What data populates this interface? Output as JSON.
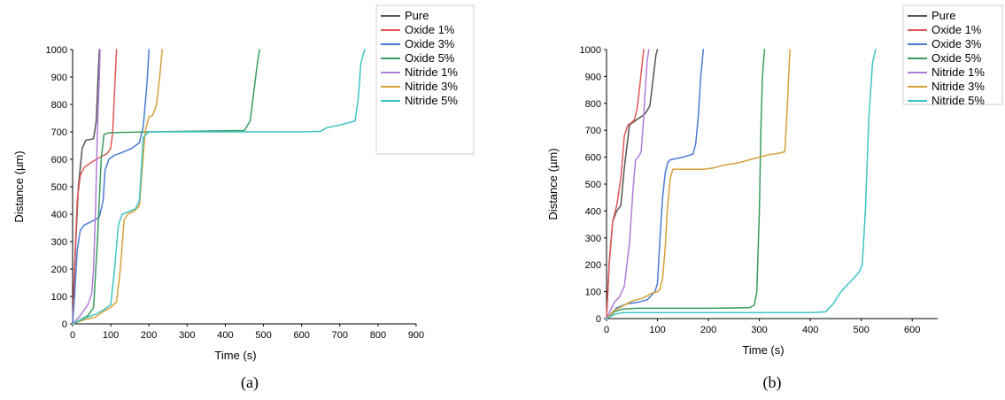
{
  "chart_data": [
    {
      "type": "line",
      "caption": "(a)",
      "xlabel": "Time (s)",
      "ylabel": "Distance (µm)",
      "xlim": [
        0,
        900
      ],
      "ylim": [
        0,
        1000
      ],
      "xticks": [
        0,
        100,
        200,
        300,
        400,
        500,
        600,
        700,
        800,
        900
      ],
      "yticks": [
        0,
        100,
        200,
        300,
        400,
        500,
        600,
        700,
        800,
        900,
        1000
      ],
      "legend_position": "top-right",
      "series": [
        {
          "name": "Pure",
          "color": "#555555",
          "x": [
            0,
            5,
            15,
            25,
            35,
            45,
            55,
            62,
            66,
            70
          ],
          "y": [
            0,
            200,
            500,
            640,
            670,
            672,
            675,
            740,
            880,
            1000
          ]
        },
        {
          "name": "Oxide 1%",
          "color": "#e05757",
          "x": [
            0,
            5,
            12,
            20,
            30,
            50,
            75,
            90,
            100,
            105,
            110,
            115
          ],
          "y": [
            0,
            200,
            450,
            540,
            570,
            590,
            610,
            620,
            640,
            700,
            850,
            1000
          ]
        },
        {
          "name": "Oxide 3%",
          "color": "#4a7bd3",
          "x": [
            0,
            5,
            12,
            20,
            30,
            45,
            60,
            70,
            80,
            85,
            95,
            110,
            130,
            155,
            175,
            185,
            195,
            200
          ],
          "y": [
            0,
            100,
            270,
            340,
            360,
            370,
            380,
            390,
            450,
            560,
            600,
            615,
            625,
            640,
            660,
            720,
            880,
            1000
          ]
        },
        {
          "name": "Oxide 5%",
          "color": "#3a9c5e",
          "x": [
            0,
            20,
            40,
            55,
            65,
            75,
            82,
            90,
            100,
            200,
            300,
            450,
            465,
            475,
            485,
            490
          ],
          "y": [
            0,
            15,
            30,
            60,
            300,
            600,
            690,
            695,
            697,
            700,
            702,
            705,
            740,
            850,
            960,
            1000
          ]
        },
        {
          "name": "Nitride 1%",
          "color": "#b07cd9",
          "x": [
            0,
            20,
            40,
            50,
            55,
            60,
            65,
            70,
            72
          ],
          "y": [
            0,
            30,
            70,
            110,
            200,
            420,
            700,
            900,
            1000
          ]
        },
        {
          "name": "Nitride 3%",
          "color": "#d4a039",
          "x": [
            0,
            30,
            60,
            80,
            100,
            115,
            125,
            135,
            145,
            160,
            175,
            190,
            200,
            210,
            220,
            228,
            235
          ],
          "y": [
            0,
            15,
            25,
            45,
            60,
            80,
            200,
            380,
            400,
            410,
            430,
            700,
            755,
            760,
            800,
            900,
            1000
          ]
        },
        {
          "name": "Nitride 5%",
          "color": "#3ec4c4",
          "x": [
            0,
            30,
            60,
            80,
            100,
            110,
            120,
            130,
            140,
            165,
            175,
            185,
            200,
            300,
            450,
            600,
            650,
            665,
            700,
            740,
            748,
            755,
            765
          ],
          "y": [
            0,
            20,
            35,
            50,
            70,
            200,
            360,
            400,
            405,
            420,
            450,
            680,
            700,
            700,
            700,
            700,
            702,
            715,
            725,
            740,
            820,
            950,
            1000
          ]
        }
      ]
    },
    {
      "type": "line",
      "caption": "(b)",
      "xlabel": "Time (s)",
      "ylabel": "Distance (µm)",
      "xlim": [
        0,
        650
      ],
      "ylim": [
        0,
        1000
      ],
      "xticks": [
        0,
        100,
        200,
        300,
        400,
        500,
        600
      ],
      "yticks": [
        0,
        100,
        200,
        300,
        400,
        500,
        600,
        700,
        800,
        900,
        1000
      ],
      "legend_position": "top-right",
      "series": [
        {
          "name": "Pure",
          "color": "#555555",
          "x": [
            0,
            5,
            12,
            20,
            28,
            35,
            45,
            60,
            75,
            85,
            92,
            97,
            100
          ],
          "y": [
            0,
            200,
            360,
            400,
            420,
            560,
            720,
            740,
            760,
            790,
            900,
            980,
            1000
          ]
        },
        {
          "name": "Oxide 1%",
          "color": "#e05757",
          "x": [
            0,
            5,
            12,
            20,
            28,
            35,
            42,
            50,
            55,
            60,
            65,
            70,
            73
          ],
          "y": [
            0,
            200,
            360,
            420,
            520,
            680,
            720,
            730,
            740,
            780,
            860,
            950,
            1000
          ]
        },
        {
          "name": "Oxide 3%",
          "color": "#4a7bd3",
          "x": [
            0,
            10,
            20,
            40,
            60,
            80,
            95,
            100,
            105,
            110,
            115,
            120,
            125,
            150,
            170,
            175,
            180,
            185,
            190
          ],
          "y": [
            0,
            20,
            40,
            55,
            60,
            70,
            100,
            130,
            300,
            450,
            540,
            580,
            590,
            600,
            612,
            650,
            750,
            900,
            1000
          ]
        },
        {
          "name": "Oxide 5%",
          "color": "#3a9c5e",
          "x": [
            0,
            15,
            30,
            60,
            100,
            200,
            280,
            290,
            295,
            300,
            303,
            306,
            310
          ],
          "y": [
            0,
            25,
            35,
            38,
            38,
            38,
            40,
            50,
            100,
            400,
            700,
            900,
            1000
          ]
        },
        {
          "name": "Nitride 1%",
          "color": "#b07cd9",
          "x": [
            0,
            15,
            25,
            35,
            45,
            52,
            57,
            62,
            68,
            72,
            76,
            80,
            83
          ],
          "y": [
            0,
            60,
            80,
            120,
            280,
            480,
            590,
            600,
            620,
            720,
            850,
            960,
            1000
          ]
        },
        {
          "name": "Nitride 3%",
          "color": "#d4a039",
          "x": [
            0,
            15,
            30,
            50,
            70,
            90,
            100,
            105,
            110,
            115,
            120,
            125,
            130,
            160,
            190,
            210,
            230,
            260,
            280,
            300,
            320,
            340,
            350,
            355,
            360
          ],
          "y": [
            0,
            30,
            45,
            65,
            75,
            95,
            100,
            110,
            150,
            260,
            420,
            520,
            555,
            555,
            555,
            560,
            570,
            580,
            590,
            600,
            610,
            615,
            620,
            800,
            1000
          ]
        },
        {
          "name": "Nitride 5%",
          "color": "#3ec4c4",
          "x": [
            0,
            15,
            30,
            100,
            200,
            300,
            400,
            430,
            445,
            460,
            480,
            495,
            502,
            508,
            515,
            522,
            528
          ],
          "y": [
            0,
            15,
            22,
            22,
            22,
            22,
            22,
            25,
            55,
            100,
            140,
            170,
            200,
            400,
            750,
            950,
            1000
          ]
        }
      ]
    }
  ]
}
